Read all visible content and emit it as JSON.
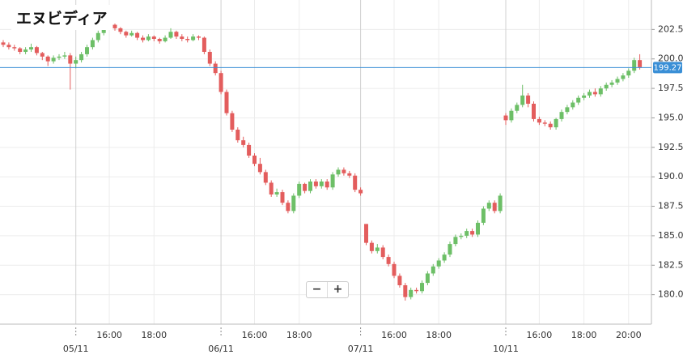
{
  "chart_data": {
    "type": "candlestick",
    "title": "エヌビディア",
    "open": [
      201.4,
      201.2,
      201.0,
      200.9,
      200.6,
      200.8,
      201.0,
      200.5,
      200.2,
      199.8,
      200.1,
      200.2,
      200.3,
      199.6,
      199.9,
      200.4,
      201.0,
      201.6,
      202.2,
      202.8,
      202.9,
      202.6,
      202.3,
      202.0,
      202.2,
      201.8,
      201.6,
      201.9,
      201.7,
      201.5,
      201.8,
      202.3,
      201.9,
      201.7,
      201.6,
      201.9,
      201.8,
      200.6,
      199.6,
      198.8,
      197.2,
      195.4,
      194.0,
      193.1,
      192.7,
      191.8,
      191.1,
      190.4,
      189.5,
      188.5,
      188.7,
      187.8,
      187.1,
      188.4,
      189.4,
      188.8,
      189.6,
      189.2,
      189.6,
      189.1,
      190.2,
      190.6,
      190.3,
      190.1,
      188.9,
      186.0,
      184.4,
      183.7,
      184.0,
      183.2,
      182.6,
      181.6,
      180.8,
      179.8,
      180.4,
      180.3,
      181.0,
      181.8,
      182.4,
      182.9,
      183.4,
      184.3,
      184.9,
      185.0,
      185.4,
      185.1,
      186.1,
      187.3,
      187.8,
      187.1,
      195.2,
      194.8,
      195.6,
      196.1,
      196.9,
      196.2,
      194.9,
      194.6,
      194.5,
      194.2,
      194.9,
      195.5,
      195.9,
      196.3,
      196.7,
      196.9,
      197.2,
      197.0,
      197.5,
      197.8,
      198.0,
      198.3,
      198.6,
      199.0,
      199.9
    ],
    "high": [
      201.6,
      201.4,
      201.2,
      201.0,
      201.0,
      201.3,
      201.1,
      200.6,
      200.3,
      200.3,
      200.4,
      200.6,
      200.5,
      200.2,
      200.6,
      201.2,
      201.8,
      202.4,
      203.0,
      203.1,
      203.0,
      202.7,
      202.4,
      202.4,
      202.3,
      202.0,
      202.1,
      202.0,
      201.8,
      202.0,
      202.6,
      202.4,
      202.1,
      201.9,
      202.1,
      202.0,
      201.9,
      200.8,
      199.8,
      199.0,
      197.4,
      195.6,
      194.2,
      193.4,
      192.9,
      192.0,
      191.6,
      190.6,
      189.7,
      189.0,
      188.9,
      188.0,
      188.6,
      189.6,
      189.5,
      189.8,
      189.8,
      189.8,
      189.8,
      190.4,
      190.8,
      190.8,
      190.5,
      190.3,
      189.1,
      186.0,
      184.6,
      184.3,
      184.2,
      183.4,
      182.8,
      181.8,
      181.0,
      180.6,
      180.6,
      181.2,
      182.0,
      182.6,
      183.1,
      183.6,
      184.5,
      185.1,
      185.2,
      185.6,
      185.6,
      186.3,
      187.5,
      188.0,
      188.0,
      188.6,
      195.4,
      195.8,
      196.3,
      197.8,
      197.1,
      196.4,
      195.1,
      194.8,
      194.7,
      195.0,
      195.7,
      196.1,
      196.5,
      196.9,
      197.1,
      197.4,
      197.5,
      197.7,
      198.0,
      198.2,
      198.5,
      198.8,
      199.2,
      200.1,
      200.4
    ],
    "low": [
      201.0,
      200.8,
      200.7,
      200.4,
      200.4,
      200.6,
      200.3,
      199.9,
      199.4,
      199.6,
      199.9,
      200.0,
      197.4,
      199.2,
      199.7,
      200.2,
      200.8,
      201.4,
      202.0,
      202.5,
      202.4,
      202.1,
      201.8,
      201.9,
      201.6,
      201.4,
      201.5,
      201.5,
      201.3,
      201.4,
      201.7,
      201.7,
      201.5,
      201.4,
      201.5,
      201.6,
      200.4,
      199.4,
      198.6,
      197.0,
      195.2,
      193.8,
      192.9,
      192.5,
      191.6,
      190.9,
      190.2,
      189.3,
      188.3,
      188.3,
      187.6,
      186.9,
      186.9,
      188.2,
      188.6,
      188.6,
      189.0,
      189.0,
      188.9,
      188.9,
      190.0,
      190.1,
      189.9,
      188.7,
      188.4,
      184.2,
      183.5,
      183.5,
      183.0,
      182.4,
      181.4,
      180.6,
      179.5,
      179.6,
      180.1,
      180.1,
      180.8,
      181.6,
      182.2,
      182.7,
      183.2,
      184.1,
      184.7,
      184.8,
      184.9,
      184.9,
      185.9,
      187.1,
      186.9,
      186.9,
      194.4,
      194.6,
      195.4,
      195.9,
      195.9,
      194.7,
      194.4,
      194.3,
      194.0,
      194.0,
      194.7,
      195.3,
      195.7,
      196.1,
      196.5,
      196.7,
      196.8,
      196.8,
      197.3,
      197.6,
      197.8,
      198.1,
      198.4,
      198.8,
      199.1
    ],
    "close": [
      201.2,
      201.0,
      200.9,
      200.6,
      200.8,
      201.0,
      200.5,
      200.2,
      199.8,
      200.1,
      200.2,
      200.3,
      199.6,
      199.9,
      200.4,
      201.0,
      201.6,
      202.2,
      202.8,
      202.9,
      202.6,
      202.3,
      202.0,
      202.2,
      201.8,
      201.6,
      201.9,
      201.7,
      201.5,
      201.8,
      202.3,
      201.9,
      201.7,
      201.6,
      201.9,
      201.8,
      200.6,
      199.6,
      198.8,
      197.2,
      195.4,
      194.0,
      193.1,
      192.7,
      191.8,
      191.1,
      190.4,
      189.5,
      188.5,
      188.7,
      187.8,
      187.1,
      188.4,
      189.4,
      188.8,
      189.6,
      189.2,
      189.6,
      189.1,
      190.2,
      190.6,
      190.3,
      190.1,
      188.9,
      188.6,
      184.4,
      183.7,
      184.0,
      183.2,
      182.6,
      181.6,
      180.8,
      179.8,
      180.4,
      180.3,
      181.0,
      181.8,
      182.4,
      182.9,
      183.4,
      184.3,
      184.9,
      185.0,
      185.4,
      185.1,
      186.1,
      187.3,
      187.8,
      187.1,
      188.4,
      194.8,
      195.6,
      196.1,
      196.9,
      196.2,
      194.9,
      194.6,
      194.5,
      194.2,
      194.9,
      195.5,
      195.9,
      196.3,
      196.7,
      196.9,
      197.2,
      197.0,
      197.5,
      197.8,
      198.0,
      198.3,
      198.6,
      199.0,
      199.9,
      199.3
    ],
    "up_color": "#6dbf67",
    "down_color": "#e35d5d",
    "ylim": [
      177.5,
      205
    ],
    "yticks": [
      {
        "value": 180,
        "label": "180.00"
      },
      {
        "value": 182.5,
        "label": "182.50"
      },
      {
        "value": 185,
        "label": "185.00"
      },
      {
        "value": 187.5,
        "label": "187.50"
      },
      {
        "value": 190,
        "label": "190.00"
      },
      {
        "value": 192.5,
        "label": "192.50"
      },
      {
        "value": 195,
        "label": "195.00"
      },
      {
        "value": 197.5,
        "label": "197.50"
      },
      {
        "value": 200,
        "label": "200.00"
      },
      {
        "value": 202.5,
        "label": "202.50"
      }
    ],
    "date_ticks": [
      {
        "value": 13,
        "label": "05/11"
      },
      {
        "value": 39,
        "label": "06/11"
      },
      {
        "value": 64,
        "label": "07/11"
      },
      {
        "value": 90,
        "label": "10/11"
      }
    ],
    "time_ticks": [
      {
        "value": 19,
        "label": "16:00"
      },
      {
        "value": 27,
        "label": "18:00"
      },
      {
        "value": 45,
        "label": "16:00"
      },
      {
        "value": 53,
        "label": "18:00"
      },
      {
        "value": 70,
        "label": "16:00"
      },
      {
        "value": 78,
        "label": "18:00"
      },
      {
        "value": 96,
        "label": "16:00"
      },
      {
        "value": 104,
        "label": "18:00"
      },
      {
        "value": 112,
        "label": "20:00"
      }
    ],
    "last_price": 199.27,
    "last_price_color": "#3a8fd6",
    "grid": true,
    "zoom_controls": [
      "−",
      "+"
    ]
  }
}
